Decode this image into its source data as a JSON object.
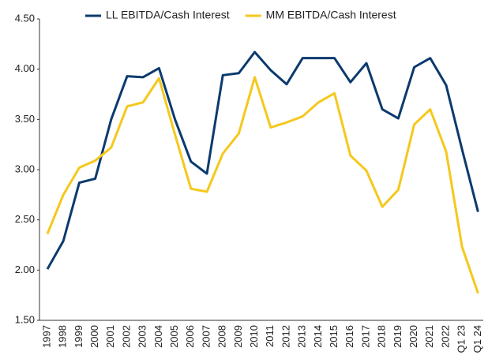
{
  "chart_data": {
    "type": "line",
    "categories": [
      "1997",
      "1998",
      "1999",
      "2000",
      "2001",
      "2002",
      "2003",
      "2004",
      "2005",
      "2006",
      "2007",
      "2008",
      "2009",
      "2010",
      "2011",
      "2012",
      "2013",
      "2014",
      "2015",
      "2016",
      "2017",
      "2018",
      "2019",
      "2020",
      "2021",
      "2022",
      "Q1 23",
      "Q1 24"
    ],
    "series": [
      {
        "name": "LL EBITDA/Cash Interest",
        "color": "#0b3a6e",
        "values": [
          2.01,
          2.29,
          2.87,
          2.91,
          3.5,
          3.93,
          3.92,
          4.01,
          3.5,
          3.08,
          2.96,
          3.94,
          3.96,
          4.17,
          3.99,
          3.85,
          4.11,
          4.11,
          4.11,
          3.87,
          4.06,
          3.6,
          3.51,
          4.02,
          4.11,
          3.84,
          3.2,
          2.58
        ]
      },
      {
        "name": "MM EBITDA/Cash Interest",
        "color": "#f5c81c",
        "values": [
          2.36,
          2.75,
          3.02,
          3.09,
          3.22,
          3.63,
          3.67,
          3.91,
          3.35,
          2.81,
          2.78,
          3.16,
          3.36,
          3.92,
          3.42,
          3.47,
          3.53,
          3.67,
          3.76,
          3.14,
          2.99,
          2.63,
          2.8,
          3.45,
          3.6,
          3.18,
          2.23,
          1.77
        ]
      }
    ],
    "ylim": [
      1.5,
      4.5
    ],
    "yticks": [
      {
        "value": 1.5,
        "label": "1.50"
      },
      {
        "value": 2,
        "label": "2.00"
      },
      {
        "value": 2.5,
        "label": "2.50"
      },
      {
        "value": 3,
        "label": "3.00"
      },
      {
        "value": 3.5,
        "label": "3.50"
      },
      {
        "value": 4,
        "label": "4.00"
      },
      {
        "value": 4.5,
        "label": "4.50"
      }
    ],
    "legend": "top"
  }
}
